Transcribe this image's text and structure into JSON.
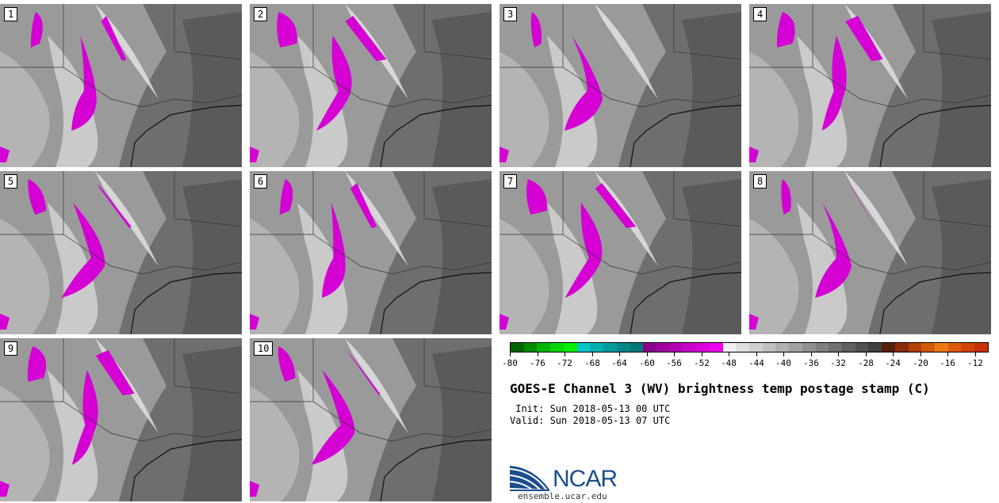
{
  "panels": [
    {
      "label": "1"
    },
    {
      "label": "2"
    },
    {
      "label": "3"
    },
    {
      "label": "4"
    },
    {
      "label": "5"
    },
    {
      "label": "6"
    },
    {
      "label": "7"
    },
    {
      "label": "8"
    },
    {
      "label": "9"
    },
    {
      "label": "10"
    }
  ],
  "colorbar": {
    "colors": [
      "#006400",
      "#008c00",
      "#00b400",
      "#00d800",
      "#00f000",
      "#00c8c8",
      "#00b0b0",
      "#009c9c",
      "#008888",
      "#007878",
      "#8c008c",
      "#a000a0",
      "#b400b4",
      "#c800c8",
      "#dc00dc",
      "#f000f0",
      "#f0f0f0",
      "#e0e0e0",
      "#d0d0d0",
      "#c0c0c0",
      "#b0b0b0",
      "#a0a0a0",
      "#909090",
      "#808080",
      "#707070",
      "#606060",
      "#505050",
      "#404040",
      "#5a1e0a",
      "#8c2d0a",
      "#b4400a",
      "#d25a0a",
      "#f07814",
      "#e05a0a",
      "#d2460a",
      "#c8320a"
    ],
    "tick_labels": [
      "-80",
      "-76",
      "-72",
      "-68",
      "-64",
      "-60",
      "-56",
      "-52",
      "-48",
      "-44",
      "-40",
      "-36",
      "-32",
      "-28",
      "-24",
      "-20",
      "-16",
      "-12"
    ]
  },
  "title": "GOES-E Channel 3 (WV) brightness temp postage stamp (C)",
  "init_line": " Init: Sun 2018-05-13 00 UTC",
  "valid_line": "Valid: Sun 2018-05-13 07 UTC",
  "logo_text": "NCAR",
  "site": "ensemble.ucar.edu"
}
